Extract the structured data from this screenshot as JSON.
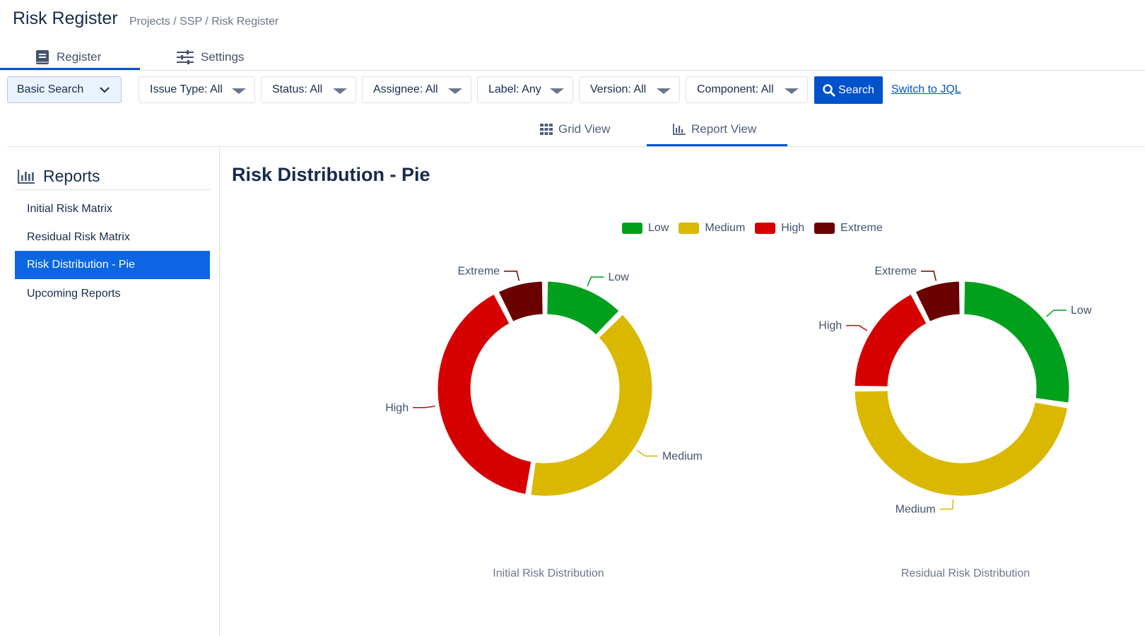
{
  "header": {
    "title": "Risk Register",
    "breadcrumb": "Projects / SSP / Risk Register"
  },
  "top_tabs": [
    {
      "label": "Register",
      "icon": "book-icon",
      "active": true
    },
    {
      "label": "Settings",
      "icon": "sliders-icon",
      "active": false
    }
  ],
  "filters": {
    "basic_search": "Basic Search",
    "items": [
      {
        "label": "Issue Type: All"
      },
      {
        "label": "Status: All"
      },
      {
        "label": "Assignee: All"
      },
      {
        "label": "Label: Any"
      },
      {
        "label": "Version: All"
      },
      {
        "label": "Component: All"
      }
    ],
    "search_label": "Search",
    "jql_label": "Switch to JQL"
  },
  "view_tabs": [
    {
      "label": "Grid View",
      "icon": "grid-icon",
      "active": false
    },
    {
      "label": "Report View",
      "icon": "chart-icon",
      "active": true
    }
  ],
  "sidebar": {
    "title": "Reports",
    "items": [
      {
        "label": "Initial Risk Matrix",
        "active": false
      },
      {
        "label": "Residual Risk Matrix",
        "active": false
      },
      {
        "label": "Risk Distribution - Pie",
        "active": true
      },
      {
        "label": "Upcoming Reports",
        "active": false
      }
    ]
  },
  "report": {
    "title": "Risk Distribution - Pie"
  },
  "colors": {
    "Low": "#00a01c",
    "Medium": "#dab800",
    "High": "#d60000",
    "Extreme": "#6b0000",
    "accent": "#0052cc"
  },
  "chart_data": [
    {
      "type": "pie",
      "title": "Initial Risk Distribution",
      "legend": [
        "Low",
        "Medium",
        "High",
        "Extreme"
      ],
      "legend_position": "top",
      "categories": [
        "Low",
        "Medium",
        "High",
        "Extreme"
      ],
      "values": [
        12.5,
        40,
        40,
        7.5
      ]
    },
    {
      "type": "pie",
      "title": "Residual Risk Distribution",
      "legend": [
        "Low",
        "Medium",
        "High",
        "Extreme"
      ],
      "legend_position": "top",
      "categories": [
        "Low",
        "Medium",
        "High",
        "Extreme"
      ],
      "values": [
        27.5,
        47.5,
        17.5,
        7.5
      ]
    }
  ]
}
